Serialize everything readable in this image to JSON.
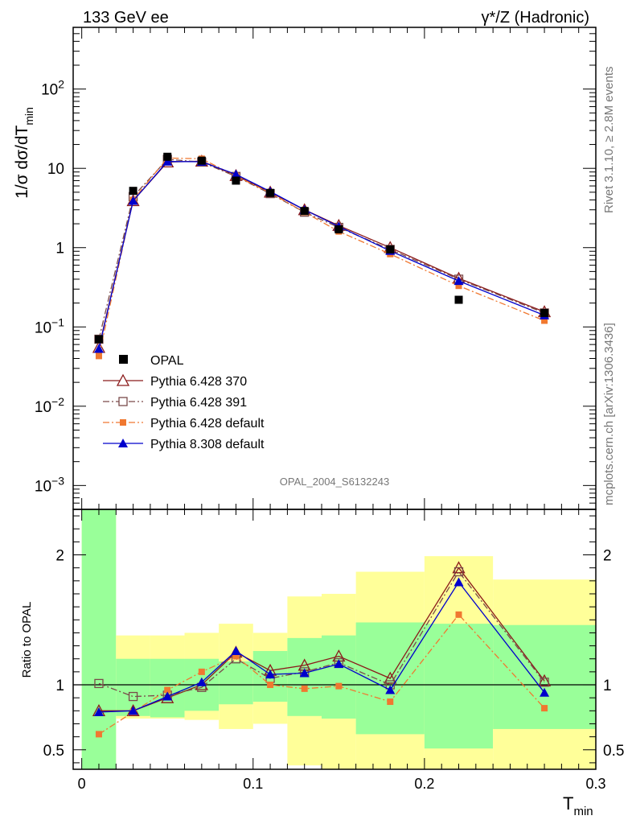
{
  "header": {
    "left": "133 GeV ee",
    "right": "γ*/Z (Hadronic)"
  },
  "side": {
    "rivet": "Rivet 3.1.10, ≥ 2.8M events",
    "mcplots": "mcplots.cern.ch [arXiv:1306.3436]"
  },
  "analysis_id": "OPAL_2004_S6132243",
  "chart_data": [
    {
      "type": "scatter",
      "panel": "main",
      "ylabel_main": "1/σ dσ/dT",
      "ylabel_sub": "min",
      "xlabel_main": "T",
      "xlabel_sub": "min",
      "yscale": "log",
      "ylim": [
        0.0005,
        600
      ],
      "xlim": [
        -0.005,
        0.3
      ],
      "y_tick_labels": [
        {
          "value": 0.001,
          "base": "10",
          "exp": "−3"
        },
        {
          "value": 0.01,
          "base": "10",
          "exp": "−2"
        },
        {
          "value": 0.1,
          "base": "10",
          "exp": "−1"
        },
        {
          "value": 1,
          "base": "1",
          "exp": ""
        },
        {
          "value": 10,
          "base": "10",
          "exp": ""
        },
        {
          "value": 100,
          "base": "10",
          "exp": "2"
        }
      ],
      "x": [
        0.01,
        0.03,
        0.05,
        0.07,
        0.09,
        0.11,
        0.13,
        0.15,
        0.18,
        0.22,
        0.27
      ],
      "data": {
        "name": "OPAL",
        "values": [
          0.07,
          5.2,
          14.0,
          12.5,
          7.0,
          4.9,
          2.9,
          1.7,
          0.95,
          0.22,
          0.15
        ]
      },
      "series": [
        {
          "name": "Pythia 6.428 370",
          "color": "#8b1a1a",
          "values": [
            0.055,
            3.9,
            12.0,
            12.3,
            8.1,
            5.0,
            3.0,
            1.9,
            1.0,
            0.41,
            0.155
          ]
        },
        {
          "name": "Pythia 6.428 391",
          "color": "#7a4a4a",
          "values": [
            0.07,
            4.4,
            13.0,
            12.0,
            7.9,
            4.8,
            2.8,
            1.8,
            0.95,
            0.4,
            0.15
          ]
        },
        {
          "name": "Pythia 6.428 default",
          "color": "#f07830",
          "values": [
            0.043,
            4.0,
            13.5,
            13.2,
            8.0,
            4.9,
            2.8,
            1.6,
            0.83,
            0.33,
            0.12
          ]
        },
        {
          "name": "Pythia 8.308 default",
          "color": "#0000cc",
          "values": [
            0.053,
            3.9,
            12.2,
            12.1,
            8.4,
            5.1,
            3.0,
            1.85,
            0.91,
            0.38,
            0.14
          ]
        }
      ]
    },
    {
      "type": "scatter",
      "panel": "ratio",
      "ylabel": "Ratio to OPAL",
      "ylim": [
        0.35,
        2.35
      ],
      "xlim": [
        -0.005,
        0.3
      ],
      "x_ticks": [
        0,
        0.1,
        0.2,
        0.3
      ],
      "x_tick_labels": [
        "0",
        "0.1",
        "0.2",
        "0.3"
      ],
      "y_ticks": [
        0.5,
        1,
        2
      ],
      "y_tick_labels": [
        "0.5",
        "1",
        "2"
      ],
      "bands": [
        {
          "xlo": 0.0,
          "xhi": 0.02,
          "green": [
            0.35,
            2.35
          ],
          "yellow": [
            0.35,
            2.35
          ]
        },
        {
          "xlo": 0.02,
          "xhi": 0.04,
          "green": [
            0.76,
            1.2
          ],
          "yellow": [
            0.74,
            1.38
          ]
        },
        {
          "xlo": 0.04,
          "xhi": 0.06,
          "green": [
            0.75,
            1.2
          ],
          "yellow": [
            0.74,
            1.38
          ]
        },
        {
          "xlo": 0.06,
          "xhi": 0.08,
          "green": [
            0.8,
            1.2
          ],
          "yellow": [
            0.73,
            1.4
          ]
        },
        {
          "xlo": 0.08,
          "xhi": 0.1,
          "green": [
            0.85,
            1.18
          ],
          "yellow": [
            0.66,
            1.47
          ]
        },
        {
          "xlo": 0.1,
          "xhi": 0.12,
          "green": [
            0.87,
            1.26
          ],
          "yellow": [
            0.7,
            1.4
          ]
        },
        {
          "xlo": 0.12,
          "xhi": 0.14,
          "green": [
            0.76,
            1.36
          ],
          "yellow": [
            0.38,
            1.68
          ]
        },
        {
          "xlo": 0.14,
          "xhi": 0.16,
          "green": [
            0.74,
            1.38
          ],
          "yellow": [
            0.35,
            1.7
          ]
        },
        {
          "xlo": 0.16,
          "xhi": 0.2,
          "green": [
            0.62,
            1.48
          ],
          "yellow": [
            0.35,
            1.87
          ]
        },
        {
          "xlo": 0.2,
          "xhi": 0.24,
          "green": [
            0.51,
            1.47
          ],
          "yellow": [
            0.35,
            1.99
          ]
        },
        {
          "xlo": 0.24,
          "xhi": 0.3,
          "green": [
            0.66,
            1.46
          ],
          "yellow": [
            0.35,
            1.81
          ]
        }
      ],
      "series": [
        {
          "name": "Pythia 6.428 370",
          "color": "#8b1a1a",
          "values": [
            0.8,
            0.8,
            0.9,
            1.0,
            1.25,
            1.11,
            1.15,
            1.22,
            1.05,
            1.9,
            1.03
          ]
        },
        {
          "name": "Pythia 6.428 391",
          "color": "#7a4a4a",
          "values": [
            1.01,
            0.91,
            0.92,
            0.98,
            1.2,
            1.05,
            1.1,
            1.17,
            1.0,
            1.87,
            1.02
          ]
        },
        {
          "name": "Pythia 6.428 default",
          "color": "#f07830",
          "values": [
            0.62,
            0.79,
            0.96,
            1.1,
            1.22,
            1.0,
            0.97,
            0.99,
            0.87,
            1.54,
            0.82
          ]
        },
        {
          "name": "Pythia 8.308 default",
          "color": "#0000cc",
          "values": [
            0.79,
            0.8,
            0.91,
            1.02,
            1.26,
            1.08,
            1.09,
            1.16,
            0.96,
            1.79,
            0.94
          ]
        }
      ]
    }
  ]
}
